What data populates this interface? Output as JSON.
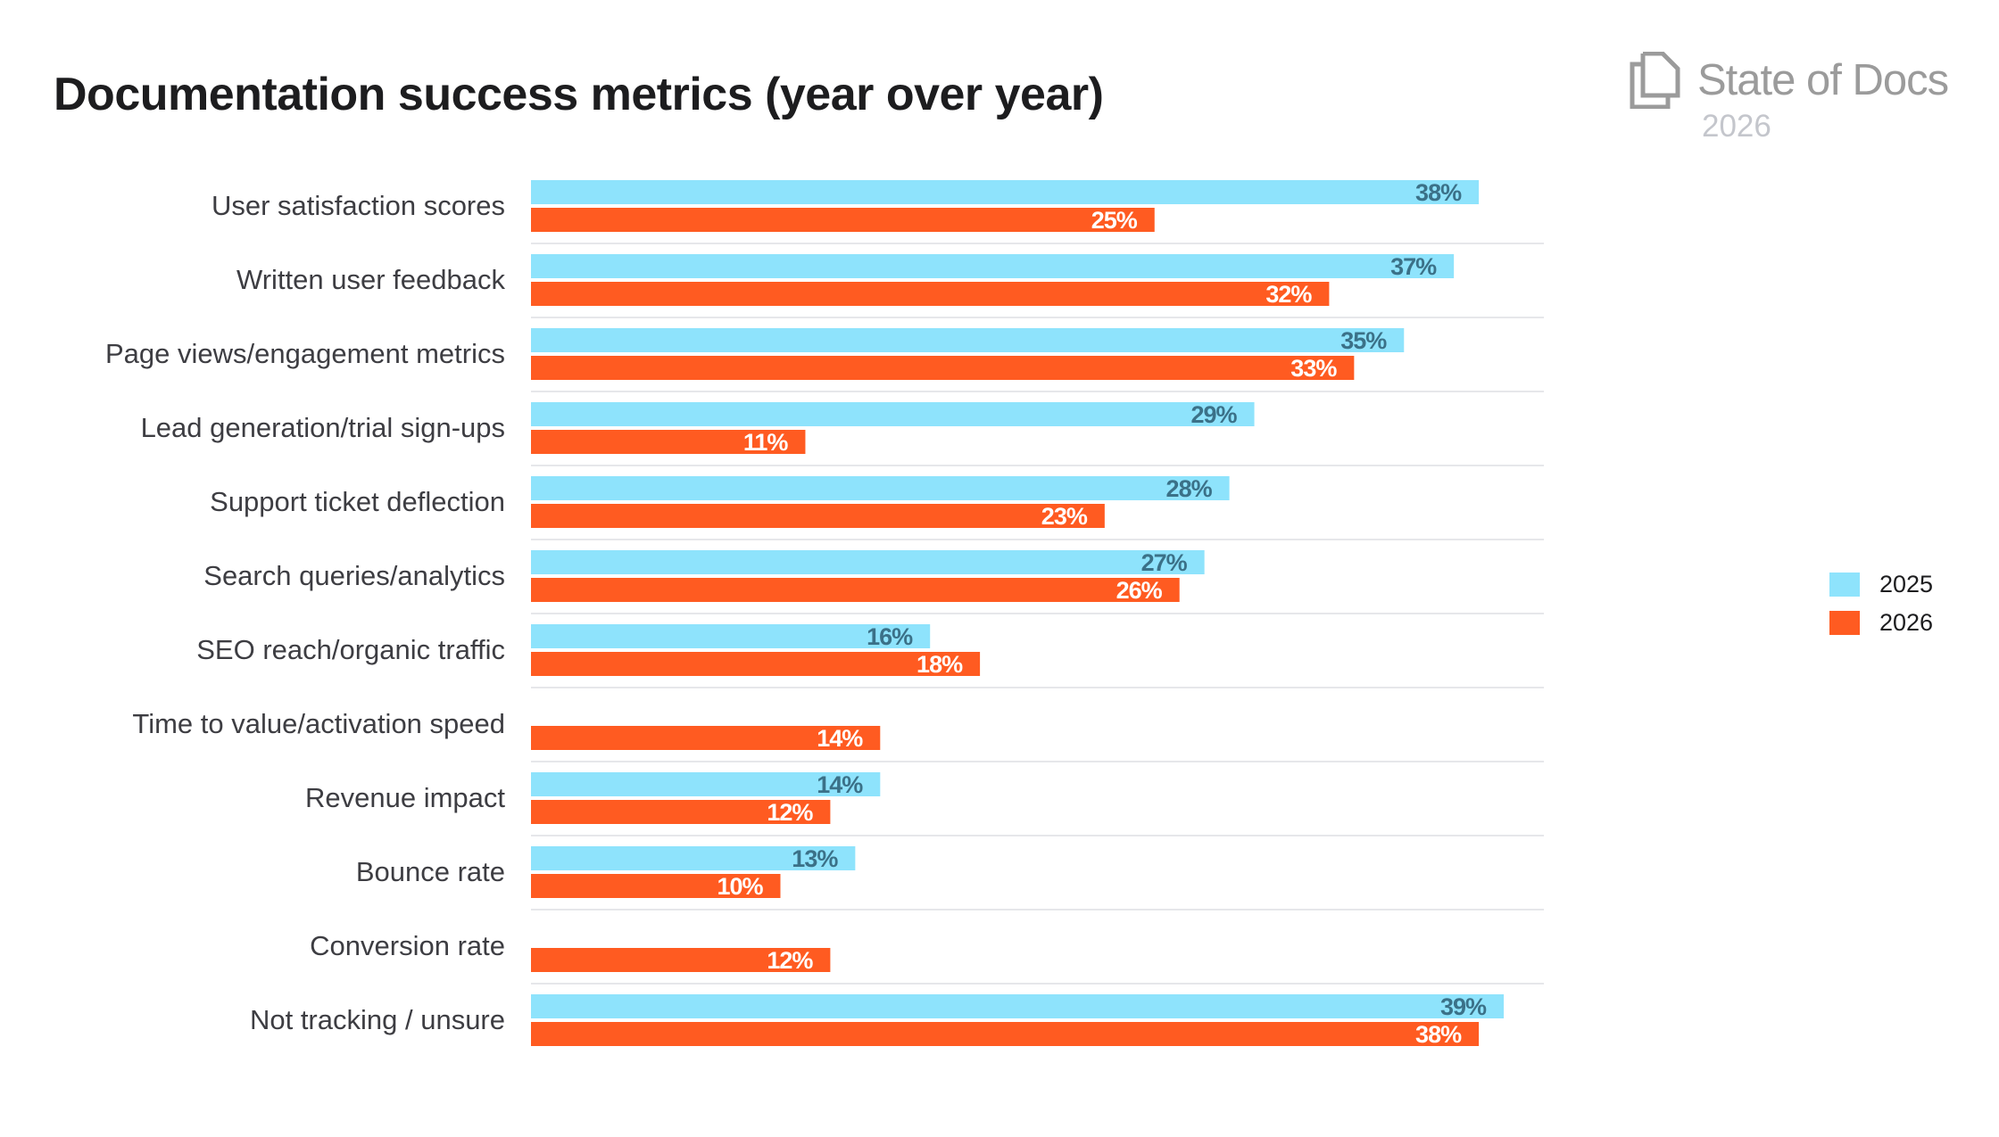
{
  "chart_data": {
    "type": "bar",
    "orientation": "horizontal",
    "title": "Documentation success metrics (year over year)",
    "categories": [
      "User satisfaction scores",
      "Written user feedback",
      "Page views/engagement metrics",
      "Lead generation/trial sign-ups",
      "Support ticket deflection",
      "Search queries/analytics",
      "SEO reach/organic traffic",
      "Time to value/activation speed",
      "Revenue impact",
      "Bounce rate",
      "Conversion rate",
      "Not tracking / unsure"
    ],
    "series": [
      {
        "name": "2025",
        "color": "#8ee3fc",
        "label_color": "#3b7188",
        "values": [
          38,
          37,
          35,
          29,
          28,
          27,
          16,
          null,
          14,
          13,
          null,
          39
        ]
      },
      {
        "name": "2026",
        "color": "#ff5b21",
        "label_color": "#ffffff",
        "values": [
          25,
          32,
          33,
          11,
          23,
          26,
          18,
          14,
          12,
          10,
          12,
          38
        ]
      }
    ],
    "value_format": "{v}%",
    "xlim": [
      0,
      40
    ],
    "grid": false,
    "row_separators": true,
    "legend_position": "right"
  },
  "branding": {
    "logo_text": "State of Docs",
    "logo_year": "2026",
    "logo_icon": "documents-icon",
    "logo_color": "#9b9b9b"
  }
}
